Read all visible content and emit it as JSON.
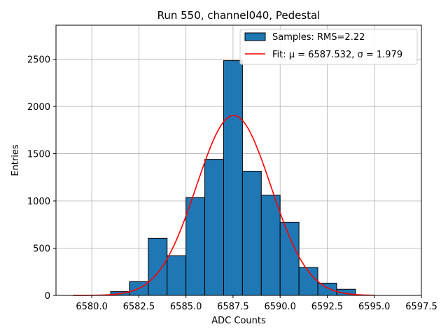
{
  "chart_data": {
    "type": "bar",
    "title": "Run 550, channel040, Pedestal",
    "xlabel": "ADC Counts",
    "ylabel": "Entries",
    "xlim": [
      6578.1,
      6597.5
    ],
    "ylim": [
      0,
      2860
    ],
    "x_ticks": [
      6580.0,
      6582.5,
      6585.0,
      6587.5,
      6590.0,
      6592.5,
      6595.0,
      6597.5
    ],
    "x_tick_labels": [
      "6580.0",
      "6582.5",
      "6585.0",
      "6587.5",
      "6590.0",
      "6592.5",
      "6595.0",
      "6597.5"
    ],
    "y_ticks": [
      0,
      500,
      1000,
      1500,
      2000,
      2500
    ],
    "y_tick_labels": [
      "0",
      "500",
      "1000",
      "1500",
      "2000",
      "2500"
    ],
    "grid": true,
    "legend_position": "top-right",
    "histogram": {
      "name": "Samples: RMS=2.22",
      "color": "#1f77b4",
      "edge_color": "#000000",
      "bin_edges": [
        6581.0,
        6582.0,
        6583.0,
        6584.0,
        6585.0,
        6586.0,
        6587.0,
        6588.0,
        6589.0,
        6590.0,
        6591.0,
        6592.0,
        6593.0,
        6594.0
      ],
      "counts": [
        40,
        145,
        605,
        420,
        1035,
        1440,
        2485,
        1315,
        1060,
        775,
        295,
        130,
        65
      ]
    },
    "fit": {
      "name": "Fit: μ = 6587.532, σ = 1.979",
      "color": "#ff0000",
      "mu": 6587.532,
      "sigma": 1.979,
      "amplitude": 1905,
      "x_range": [
        6579.0,
        6595.0
      ]
    }
  }
}
